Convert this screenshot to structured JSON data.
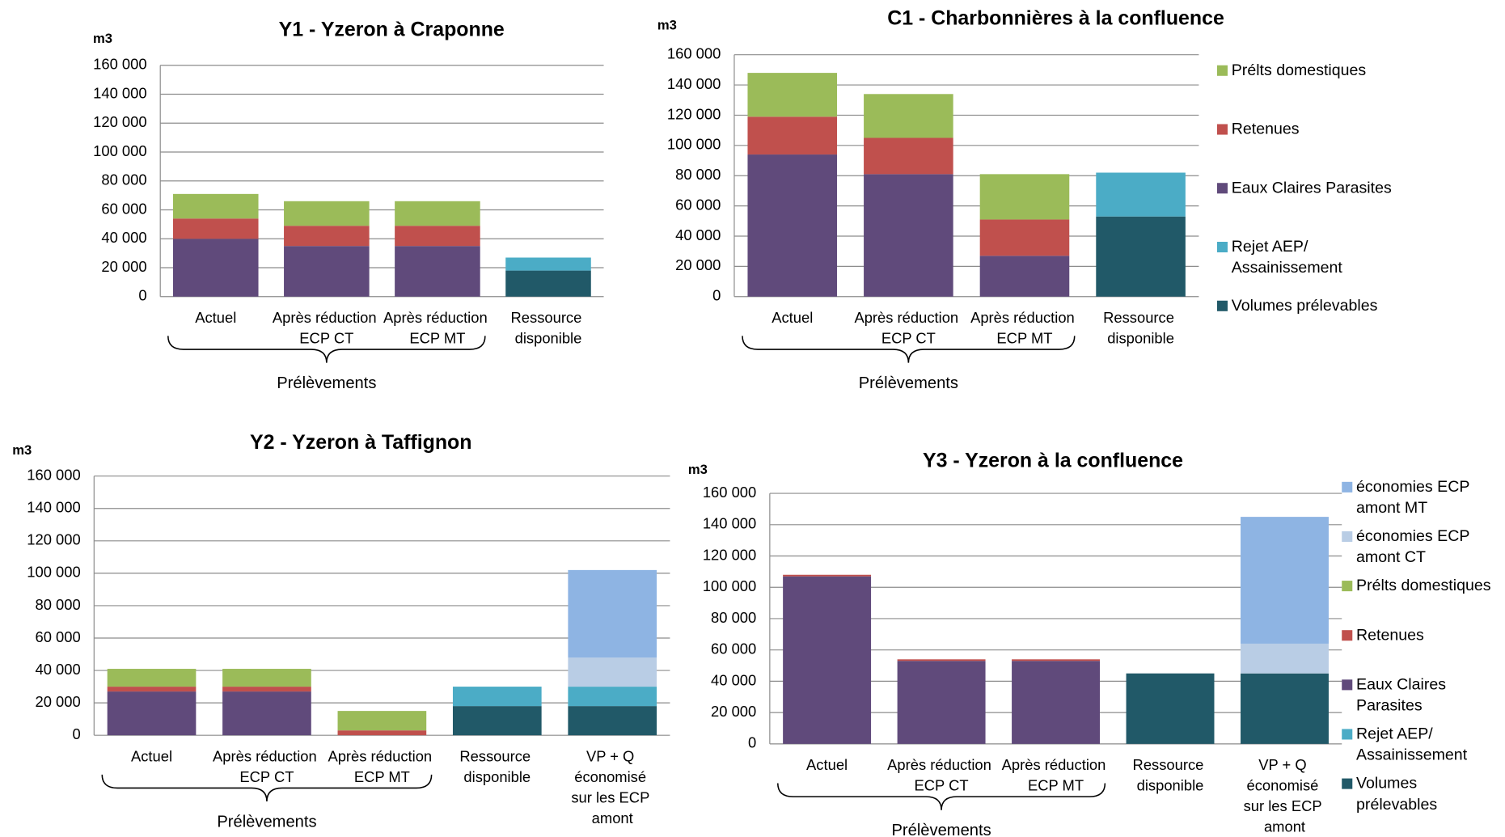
{
  "chart_data": [
    {
      "type": "bar",
      "stacked": true,
      "title": "Y1 - Yzeron à Craponne",
      "y_unit": "m3",
      "categories": [
        "Actuel",
        "Après réduction\nECP CT",
        "Après réduction\nECP MT",
        "Ressource\ndisponible"
      ],
      "group_label": "Prélèvements",
      "series": [
        {
          "color": "#215968",
          "values": [
            0,
            0,
            0,
            18000
          ]
        },
        {
          "color": "#4bacc6",
          "values": [
            0,
            0,
            0,
            9000
          ]
        },
        {
          "color": "#604a7b",
          "values": [
            40000,
            35000,
            35000,
            0
          ]
        },
        {
          "color": "#c0504d",
          "values": [
            14000,
            14000,
            14000,
            0
          ]
        },
        {
          "color": "#9bbb59",
          "values": [
            17000,
            17000,
            17000,
            0
          ]
        }
      ],
      "ylim": [
        0,
        160000
      ],
      "yticks": [
        0,
        {
          "value": 20000,
          "label": "20 000"
        },
        {
          "value": 40000,
          "label": "40 000"
        },
        {
          "value": 60000,
          "label": "60 000"
        },
        {
          "value": 80000,
          "label": "80 000"
        },
        {
          "value": 100000,
          "label": "100 000"
        },
        {
          "value": 120000,
          "label": "120 000"
        },
        {
          "value": 140000,
          "label": "140 000"
        },
        {
          "value": 160000,
          "label": "160 000"
        }
      ],
      "grid": true
    },
    {
      "type": "bar",
      "stacked": true,
      "title": "C1 - Charbonnières à la confluence",
      "y_unit": "m3",
      "categories": [
        "Actuel",
        "Après réduction\nECP CT",
        "Après réduction\nECP MT",
        "Ressource\ndisponible"
      ],
      "group_label": "Prélèvements",
      "series": [
        {
          "name": "Volumes prélevables",
          "color": "#215968",
          "values": [
            0,
            0,
            0,
            53000
          ]
        },
        {
          "name": "Rejet AEP/\nAssainissement",
          "color": "#4bacc6",
          "values": [
            0,
            0,
            0,
            29000
          ]
        },
        {
          "name": "Eaux Claires Parasites",
          "color": "#604a7b",
          "values": [
            94000,
            81000,
            27000,
            0
          ]
        },
        {
          "name": "Retenues",
          "color": "#c0504d",
          "values": [
            25000,
            24000,
            24000,
            0
          ]
        },
        {
          "name": "Prélts domestiques",
          "color": "#9bbb59",
          "values": [
            29000,
            29000,
            30000,
            0
          ]
        }
      ],
      "ylim": [
        0,
        160000
      ],
      "yticks": [
        0,
        {
          "value": 20000,
          "label": "20 000"
        },
        {
          "value": 40000,
          "label": "40 000"
        },
        {
          "value": 60000,
          "label": "60 000"
        },
        {
          "value": 80000,
          "label": "80 000"
        },
        {
          "value": 100000,
          "label": "100 000"
        },
        {
          "value": 120000,
          "label": "120 000"
        },
        {
          "value": 140000,
          "label": "140 000"
        },
        {
          "value": 160000,
          "label": "160 000"
        }
      ],
      "grid": true,
      "legend": "right"
    },
    {
      "type": "bar",
      "stacked": true,
      "title": "Y2 - Yzeron à Taffignon",
      "y_unit": "m3",
      "categories": [
        "Actuel",
        "Après réduction\nECP CT",
        "Après réduction\nECP MT",
        "Ressource\ndisponible",
        "VP + Q\néconomisé\nsur les ECP\namont"
      ],
      "group_label": "Prélèvements",
      "series": [
        {
          "color": "#215968",
          "values": [
            0,
            0,
            0,
            18000,
            18000
          ]
        },
        {
          "color": "#4bacc6",
          "values": [
            0,
            0,
            0,
            12000,
            12000
          ]
        },
        {
          "color": "#604a7b",
          "values": [
            27000,
            27000,
            0,
            0,
            0
          ]
        },
        {
          "color": "#c0504d",
          "values": [
            3000,
            3000,
            3000,
            0,
            0
          ]
        },
        {
          "color": "#9bbb59",
          "values": [
            11000,
            11000,
            12000,
            0,
            0
          ]
        },
        {
          "color": "#b9cde5",
          "values": [
            0,
            0,
            0,
            0,
            18000
          ]
        },
        {
          "color": "#8eb4e3",
          "values": [
            0,
            0,
            0,
            0,
            54000
          ]
        }
      ],
      "ylim": [
        0,
        160000
      ],
      "yticks": [
        0,
        {
          "value": 20000,
          "label": "20 000"
        },
        {
          "value": 40000,
          "label": "40 000"
        },
        {
          "value": 60000,
          "label": "60 000"
        },
        {
          "value": 80000,
          "label": "80 000"
        },
        {
          "value": 100000,
          "label": "100 000"
        },
        {
          "value": 120000,
          "label": "120 000"
        },
        {
          "value": 140000,
          "label": "140 000"
        },
        {
          "value": 160000,
          "label": "160 000"
        }
      ],
      "grid": true
    },
    {
      "type": "bar",
      "stacked": true,
      "title": "Y3 - Yzeron à la confluence",
      "y_unit": "m3",
      "categories": [
        "Actuel",
        "Après réduction\nECP CT",
        "Après réduction\nECP MT",
        "Ressource\ndisponible",
        "VP + Q\néconomisé\nsur les ECP\namont"
      ],
      "group_label": "Prélèvements",
      "series": [
        {
          "name": "Volumes\nprélevables",
          "color": "#215968",
          "values": [
            0,
            0,
            0,
            45000,
            45000
          ]
        },
        {
          "name": "Rejet AEP/\nAssainissement",
          "color": "#4bacc6",
          "values": [
            0,
            0,
            0,
            0,
            0
          ]
        },
        {
          "name": "Eaux Claires\nParasites",
          "color": "#604a7b",
          "values": [
            107000,
            53000,
            53000,
            0,
            0
          ]
        },
        {
          "name": "Retenues",
          "color": "#c0504d",
          "values": [
            1000,
            1000,
            1000,
            0,
            0
          ]
        },
        {
          "name": "Prélts domestiques",
          "color": "#9bbb59",
          "values": [
            0,
            0,
            0,
            0,
            0
          ]
        },
        {
          "name": "économies ECP\namont CT",
          "color": "#b9cde5",
          "values": [
            0,
            0,
            0,
            0,
            19000
          ]
        },
        {
          "name": "économies ECP\namont MT",
          "color": "#8eb4e3",
          "values": [
            0,
            0,
            0,
            0,
            81000
          ]
        }
      ],
      "ylim": [
        0,
        160000
      ],
      "yticks": [
        0,
        {
          "value": 20000,
          "label": "20 000"
        },
        {
          "value": 40000,
          "label": "40 000"
        },
        {
          "value": 60000,
          "label": "60 000"
        },
        {
          "value": 80000,
          "label": "80 000"
        },
        {
          "value": 100000,
          "label": "100 000"
        },
        {
          "value": 120000,
          "label": "120 000"
        },
        {
          "value": 140000,
          "label": "140 000"
        },
        {
          "value": 160000,
          "label": "160 000"
        }
      ],
      "grid": true,
      "legend": "right"
    }
  ]
}
